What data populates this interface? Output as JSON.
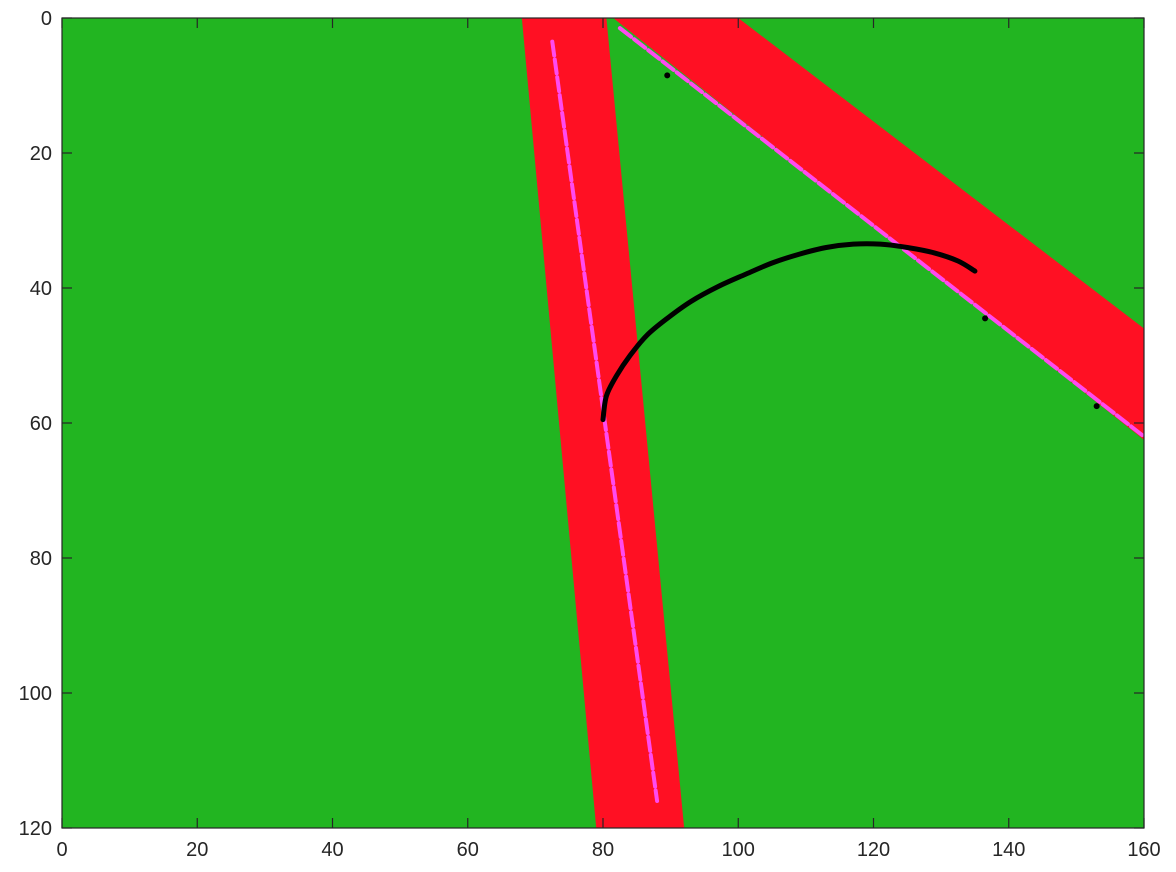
{
  "chart_data": {
    "type": "heatmap",
    "title": "",
    "xlabel": "",
    "ylabel": "",
    "xlim": [
      0,
      160
    ],
    "ylim": [
      0,
      120
    ],
    "y_direction": "reversed",
    "x_ticks": [
      0,
      20,
      40,
      60,
      80,
      100,
      120,
      140,
      160
    ],
    "y_ticks": [
      0,
      20,
      40,
      60,
      80,
      100,
      120
    ],
    "x_tick_labels": [
      "0",
      "20",
      "40",
      "60",
      "80",
      "100",
      "120",
      "140",
      "160"
    ],
    "y_tick_labels": [
      "0",
      "20",
      "40",
      "60",
      "80",
      "100",
      "120"
    ],
    "grid": false,
    "colors": {
      "background": "#22b521",
      "band": "#ff1023",
      "centerline": "#ff4af0",
      "path": "#000000",
      "axis": "#262626"
    },
    "regions": [
      {
        "kind": "band",
        "polygon": [
          [
            68,
            0
          ],
          [
            80.5,
            0
          ],
          [
            92,
            120
          ],
          [
            79,
            120
          ]
        ]
      },
      {
        "kind": "band",
        "polygon": [
          [
            81.5,
            0
          ],
          [
            100,
            0
          ],
          [
            160,
            46
          ],
          [
            160,
            62.5
          ]
        ]
      }
    ],
    "lines": [
      {
        "kind": "centerline",
        "points": [
          [
            72.5,
            3.5
          ],
          [
            88,
            116
          ]
        ]
      },
      {
        "kind": "centerline",
        "points": [
          [
            82.5,
            1.5
          ],
          [
            160,
            62
          ]
        ]
      }
    ],
    "path": {
      "points": [
        [
          80,
          59.5
        ],
        [
          80.5,
          56
        ],
        [
          82,
          53
        ],
        [
          84,
          50
        ],
        [
          86.5,
          47
        ],
        [
          89.5,
          44.5
        ],
        [
          93,
          42
        ],
        [
          97,
          39.8
        ],
        [
          101,
          38
        ],
        [
          105,
          36.3
        ],
        [
          109,
          35
        ],
        [
          113,
          34
        ],
        [
          117,
          33.5
        ],
        [
          121,
          33.5
        ],
        [
          125,
          34
        ],
        [
          129,
          34.8
        ],
        [
          132.5,
          36
        ],
        [
          135,
          37.5
        ]
      ]
    },
    "markers": [
      [
        89.5,
        8.5
      ],
      [
        136.5,
        44.5
      ],
      [
        153,
        57.5
      ]
    ]
  }
}
